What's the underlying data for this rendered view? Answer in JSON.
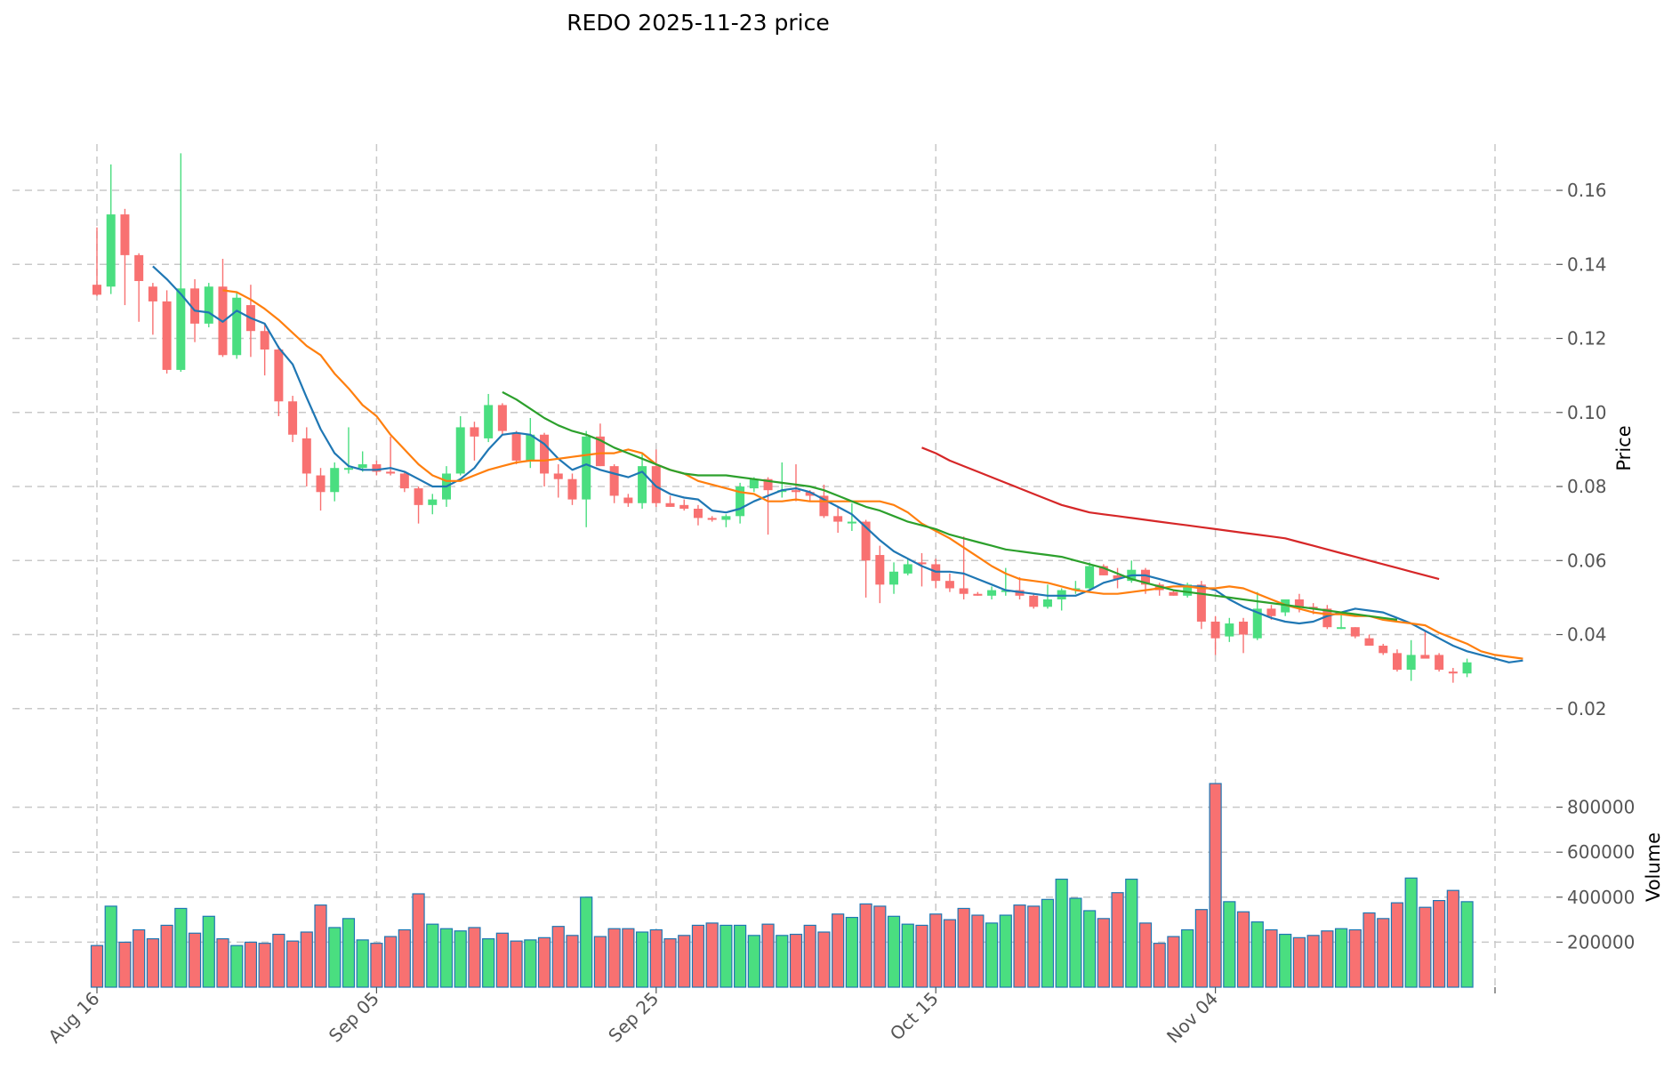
{
  "chart_data": {
    "type": "candlestick",
    "title": "REDO  2025-11-23  price",
    "xlabel": "",
    "ylabel": "Price",
    "volume_label": "Volume",
    "x_tick_labels": [
      "Aug 16",
      "Sep 05",
      "Sep 25",
      "Oct 15",
      "Nov 04"
    ],
    "y_ticks": [
      "0.02",
      "0.04",
      "0.06",
      "0.08",
      "0.10",
      "0.12",
      "0.14",
      "0.16"
    ],
    "vol_ticks": [
      "200000",
      "400000",
      "600000",
      "800000"
    ],
    "price_ylim": [
      0.0125,
      0.1725
    ],
    "volume_ylim": [
      0,
      1000000
    ],
    "start_date": "2025-08-16",
    "colors": {
      "up": "#4ade80",
      "down": "#f87171",
      "ma7": "#1f77b4",
      "ma14": "#ff7f0e",
      "ma30": "#2ca02c",
      "ma60": "#d62728"
    },
    "ohlc": [
      [
        0.1345,
        0.15,
        0.1315,
        0.1318
      ],
      [
        0.134,
        0.167,
        0.132,
        0.1535
      ],
      [
        0.1535,
        0.155,
        0.129,
        0.1425
      ],
      [
        0.1425,
        0.143,
        0.1245,
        0.1355
      ],
      [
        0.134,
        0.135,
        0.121,
        0.13
      ],
      [
        0.13,
        0.133,
        0.1105,
        0.1115
      ],
      [
        0.1115,
        0.17,
        0.111,
        0.1335
      ],
      [
        0.1335,
        0.136,
        0.119,
        0.124
      ],
      [
        0.124,
        0.135,
        0.123,
        0.134
      ],
      [
        0.134,
        0.1415,
        0.115,
        0.1155
      ],
      [
        0.1155,
        0.1325,
        0.1145,
        0.131
      ],
      [
        0.129,
        0.1345,
        0.115,
        0.122
      ],
      [
        0.122,
        0.124,
        0.11,
        0.117
      ],
      [
        0.117,
        0.118,
        0.099,
        0.103
      ],
      [
        0.103,
        0.1045,
        0.092,
        0.094
      ],
      [
        0.093,
        0.096,
        0.08,
        0.0835
      ],
      [
        0.083,
        0.085,
        0.0735,
        0.0785
      ],
      [
        0.0785,
        0.0865,
        0.076,
        0.085
      ],
      [
        0.085,
        0.096,
        0.0835,
        0.085
      ],
      [
        0.085,
        0.0895,
        0.084,
        0.086
      ],
      [
        0.086,
        0.087,
        0.083,
        0.084
      ],
      [
        0.084,
        0.0935,
        0.083,
        0.0835
      ],
      [
        0.0835,
        0.084,
        0.0785,
        0.0795
      ],
      [
        0.0795,
        0.08,
        0.07,
        0.075
      ],
      [
        0.075,
        0.078,
        0.0725,
        0.0765
      ],
      [
        0.0765,
        0.0855,
        0.0745,
        0.0835
      ],
      [
        0.0835,
        0.099,
        0.083,
        0.096
      ],
      [
        0.096,
        0.0975,
        0.087,
        0.0935
      ],
      [
        0.093,
        0.105,
        0.092,
        0.102
      ],
      [
        0.102,
        0.1025,
        0.094,
        0.095
      ],
      [
        0.0945,
        0.095,
        0.086,
        0.087
      ],
      [
        0.087,
        0.0985,
        0.085,
        0.094
      ],
      [
        0.094,
        0.0945,
        0.08,
        0.0835
      ],
      [
        0.0835,
        0.086,
        0.077,
        0.082
      ],
      [
        0.082,
        0.0835,
        0.075,
        0.0765
      ],
      [
        0.0765,
        0.095,
        0.069,
        0.0935
      ],
      [
        0.0935,
        0.097,
        0.0855,
        0.0855
      ],
      [
        0.0855,
        0.086,
        0.0755,
        0.0775
      ],
      [
        0.077,
        0.078,
        0.0745,
        0.0755
      ],
      [
        0.0755,
        0.089,
        0.074,
        0.0855
      ],
      [
        0.0855,
        0.09,
        0.0745,
        0.0755
      ],
      [
        0.0755,
        0.0775,
        0.0745,
        0.0745
      ],
      [
        0.075,
        0.0765,
        0.0735,
        0.074
      ],
      [
        0.074,
        0.075,
        0.0695,
        0.0715
      ],
      [
        0.0715,
        0.072,
        0.0705,
        0.071
      ],
      [
        0.071,
        0.0725,
        0.069,
        0.072
      ],
      [
        0.072,
        0.081,
        0.07,
        0.08
      ],
      [
        0.0795,
        0.0825,
        0.0785,
        0.082
      ],
      [
        0.082,
        0.0825,
        0.067,
        0.079
      ],
      [
        0.079,
        0.0865,
        0.077,
        0.079
      ],
      [
        0.079,
        0.086,
        0.076,
        0.0785
      ],
      [
        0.0785,
        0.079,
        0.076,
        0.0775
      ],
      [
        0.0775,
        0.0805,
        0.0715,
        0.072
      ],
      [
        0.072,
        0.0745,
        0.0675,
        0.0705
      ],
      [
        0.0705,
        0.0755,
        0.068,
        0.0705
      ],
      [
        0.0705,
        0.071,
        0.05,
        0.06
      ],
      [
        0.0615,
        0.064,
        0.0485,
        0.0535
      ],
      [
        0.0535,
        0.0595,
        0.051,
        0.057
      ],
      [
        0.0565,
        0.0605,
        0.056,
        0.059
      ],
      [
        0.0595,
        0.062,
        0.053,
        0.059
      ],
      [
        0.059,
        0.0605,
        0.0525,
        0.0545
      ],
      [
        0.0545,
        0.0565,
        0.0515,
        0.0525
      ],
      [
        0.0525,
        0.0665,
        0.0495,
        0.051
      ],
      [
        0.051,
        0.0515,
        0.0505,
        0.0505
      ],
      [
        0.0505,
        0.053,
        0.0495,
        0.052
      ],
      [
        0.0515,
        0.058,
        0.0505,
        0.052
      ],
      [
        0.052,
        0.0555,
        0.0495,
        0.0505
      ],
      [
        0.0505,
        0.051,
        0.047,
        0.0475
      ],
      [
        0.0475,
        0.0535,
        0.047,
        0.0495
      ],
      [
        0.0495,
        0.0525,
        0.0465,
        0.052
      ],
      [
        0.052,
        0.0545,
        0.051,
        0.0525
      ],
      [
        0.0525,
        0.0595,
        0.052,
        0.0585
      ],
      [
        0.0585,
        0.059,
        0.056,
        0.056
      ],
      [
        0.056,
        0.058,
        0.0525,
        0.055
      ],
      [
        0.0545,
        0.06,
        0.054,
        0.0575
      ],
      [
        0.0575,
        0.058,
        0.051,
        0.0535
      ],
      [
        0.0535,
        0.054,
        0.0505,
        0.052
      ],
      [
        0.0515,
        0.052,
        0.0505,
        0.0505
      ],
      [
        0.0505,
        0.054,
        0.05,
        0.0535
      ],
      [
        0.0535,
        0.0545,
        0.0415,
        0.0435
      ],
      [
        0.0435,
        0.045,
        0.0345,
        0.039
      ],
      [
        0.0395,
        0.0445,
        0.038,
        0.043
      ],
      [
        0.0435,
        0.0445,
        0.035,
        0.04
      ],
      [
        0.039,
        0.0515,
        0.0385,
        0.047
      ],
      [
        0.047,
        0.048,
        0.044,
        0.045
      ],
      [
        0.046,
        0.049,
        0.045,
        0.0495
      ],
      [
        0.0495,
        0.051,
        0.046,
        0.0475
      ],
      [
        0.0475,
        0.0485,
        0.0455,
        0.047
      ],
      [
        0.047,
        0.048,
        0.0415,
        0.042
      ],
      [
        0.042,
        0.0455,
        0.0415,
        0.042
      ],
      [
        0.042,
        0.042,
        0.039,
        0.0395
      ],
      [
        0.039,
        0.04,
        0.037,
        0.037
      ],
      [
        0.037,
        0.0375,
        0.0345,
        0.035
      ],
      [
        0.035,
        0.036,
        0.03,
        0.0305
      ],
      [
        0.0305,
        0.0385,
        0.0275,
        0.0345
      ],
      [
        0.0345,
        0.041,
        0.034,
        0.0335
      ],
      [
        0.0345,
        0.035,
        0.03,
        0.0305
      ],
      [
        0.03,
        0.031,
        0.027,
        0.0295
      ],
      [
        0.0295,
        0.0335,
        0.0285,
        0.0325
      ]
    ],
    "volume": [
      185000,
      360000,
      200000,
      255000,
      215000,
      275000,
      350000,
      240000,
      315000,
      215000,
      185000,
      200000,
      195000,
      235000,
      205000,
      245000,
      365000,
      265000,
      305000,
      210000,
      195000,
      225000,
      255000,
      415000,
      280000,
      260000,
      250000,
      265000,
      215000,
      240000,
      205000,
      210000,
      220000,
      270000,
      230000,
      400000,
      225000,
      260000,
      260000,
      245000,
      255000,
      215000,
      230000,
      275000,
      285000,
      275000,
      275000,
      230000,
      280000,
      230000,
      235000,
      275000,
      245000,
      325000,
      310000,
      370000,
      360000,
      315000,
      280000,
      275000,
      325000,
      300000,
      350000,
      320000,
      285000,
      320000,
      365000,
      360000,
      390000,
      480000,
      395000,
      340000,
      305000,
      420000,
      480000,
      285000,
      195000,
      225000,
      255000,
      345000,
      905000,
      380000,
      335000,
      290000,
      255000,
      235000,
      220000,
      230000,
      250000,
      260000,
      255000,
      330000,
      305000,
      375000,
      485000,
      355000,
      385000,
      430000,
      380000
    ],
    "moving_averages": [
      {
        "name": "MA7",
        "color": "#1f77b4",
        "start_index": 4,
        "values": [
          0.1395,
          0.136,
          0.132,
          0.1275,
          0.127,
          0.1245,
          0.1275,
          0.1255,
          0.124,
          0.1175,
          0.113,
          0.104,
          0.0955,
          0.089,
          0.0855,
          0.0845,
          0.0845,
          0.085,
          0.084,
          0.082,
          0.08,
          0.08,
          0.082,
          0.085,
          0.09,
          0.094,
          0.0945,
          0.094,
          0.0915,
          0.0875,
          0.0845,
          0.086,
          0.0845,
          0.0835,
          0.0825,
          0.084,
          0.08,
          0.078,
          0.077,
          0.0765,
          0.0735,
          0.073,
          0.074,
          0.076,
          0.0775,
          0.079,
          0.0795,
          0.0785,
          0.0765,
          0.0745,
          0.0725,
          0.069,
          0.0655,
          0.0625,
          0.0605,
          0.0585,
          0.057,
          0.057,
          0.0565,
          0.055,
          0.0535,
          0.052,
          0.0515,
          0.051,
          0.0505,
          0.0505,
          0.0505,
          0.052,
          0.054,
          0.055,
          0.056,
          0.056,
          0.055,
          0.054,
          0.053,
          0.053,
          0.052,
          0.0495,
          0.0475,
          0.046,
          0.0445,
          0.0435,
          0.043,
          0.0435,
          0.045,
          0.046,
          0.047,
          0.0465,
          0.046,
          0.0445,
          0.043,
          0.041,
          0.039,
          0.037,
          0.0355,
          0.0345,
          0.0335,
          0.0325,
          0.033
        ]
      },
      {
        "name": "MA14",
        "color": "#ff7f0e",
        "start_index": 9,
        "values": [
          0.133,
          0.1325,
          0.1305,
          0.128,
          0.125,
          0.1215,
          0.118,
          0.1155,
          0.1105,
          0.1065,
          0.102,
          0.099,
          0.094,
          0.09,
          0.086,
          0.083,
          0.0815,
          0.0815,
          0.083,
          0.0845,
          0.0855,
          0.0865,
          0.087,
          0.087,
          0.0875,
          0.088,
          0.0885,
          0.089,
          0.089,
          0.09,
          0.089,
          0.086,
          0.0845,
          0.0835,
          0.0815,
          0.0805,
          0.0795,
          0.0785,
          0.078,
          0.076,
          0.076,
          0.0765,
          0.076,
          0.076,
          0.076,
          0.076,
          0.076,
          0.076,
          0.075,
          0.073,
          0.07,
          0.068,
          0.066,
          0.0635,
          0.061,
          0.0585,
          0.0565,
          0.055,
          0.0545,
          0.054,
          0.053,
          0.052,
          0.0515,
          0.051,
          0.051,
          0.0515,
          0.052,
          0.0525,
          0.053,
          0.053,
          0.0525,
          0.0525,
          0.053,
          0.0525,
          0.051,
          0.0495,
          0.048,
          0.047,
          0.046,
          0.0455,
          0.0455,
          0.045,
          0.045,
          0.044,
          0.0435,
          0.043,
          0.0425,
          0.0405,
          0.039,
          0.0375,
          0.0355,
          0.0345,
          0.034,
          0.0335
        ]
      },
      {
        "name": "MA30",
        "color": "#2ca02c",
        "start_index": 29,
        "values": [
          0.1055,
          0.1035,
          0.101,
          0.0985,
          0.0965,
          0.095,
          0.094,
          0.0925,
          0.0905,
          0.089,
          0.0875,
          0.086,
          0.0845,
          0.0835,
          0.083,
          0.083,
          0.083,
          0.0825,
          0.082,
          0.0815,
          0.081,
          0.0805,
          0.08,
          0.079,
          0.0775,
          0.076,
          0.0745,
          0.0735,
          0.072,
          0.0705,
          0.0695,
          0.0685,
          0.067,
          0.066,
          0.065,
          0.064,
          0.063,
          0.0625,
          0.062,
          0.0615,
          0.061,
          0.06,
          0.059,
          0.058,
          0.0565,
          0.055,
          0.054,
          0.053,
          0.052,
          0.0515,
          0.051,
          0.0505,
          0.05,
          0.0495,
          0.049,
          0.0485,
          0.048,
          0.0475,
          0.047,
          0.0465,
          0.046,
          0.0455,
          0.045,
          0.0445,
          0.044
        ]
      },
      {
        "name": "MA60",
        "color": "#d62728",
        "start_index": 59,
        "values": [
          0.0905,
          0.089,
          0.087,
          0.0855,
          0.084,
          0.0825,
          0.081,
          0.0795,
          0.078,
          0.0765,
          0.075,
          0.074,
          0.073,
          0.0725,
          0.072,
          0.0715,
          0.071,
          0.0705,
          0.07,
          0.0695,
          0.069,
          0.0685,
          0.068,
          0.0675,
          0.067,
          0.0665,
          0.066,
          0.065,
          0.064,
          0.063,
          0.062,
          0.061,
          0.06,
          0.059,
          0.058,
          0.057,
          0.056,
          0.055
        ]
      }
    ]
  }
}
